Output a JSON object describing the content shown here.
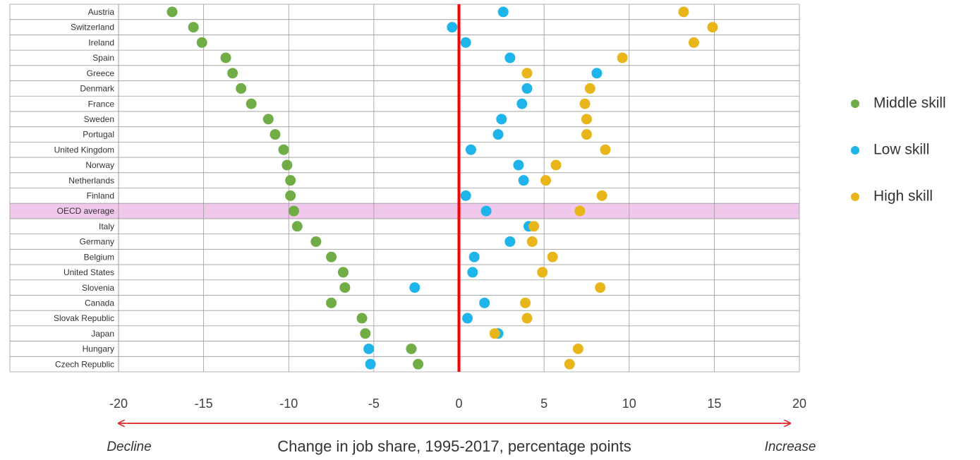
{
  "chart_data": {
    "type": "dot",
    "categories": [
      "Austria",
      "Switzerland",
      "Ireland",
      "Spain",
      "Greece",
      "Denmark",
      "France",
      "Sweden",
      "Portugal",
      "United Kingdom",
      "Norway",
      "Netherlands",
      "Finland",
      "OECD average",
      "Italy",
      "Germany",
      "Belgium",
      "United States",
      "Slovenia",
      "Canada",
      "Slovak Republic",
      "Japan",
      "Hungary",
      "Czech Republic"
    ],
    "series": [
      {
        "name": "Middle skill",
        "color": "#70ad47",
        "values": [
          -16.85,
          -15.6,
          -15.1,
          -13.7,
          -13.3,
          -12.8,
          -12.2,
          -11.2,
          -10.8,
          -10.3,
          -10.1,
          -9.9,
          -9.9,
          -9.7,
          -9.5,
          -8.4,
          -7.5,
          -6.8,
          -6.7,
          -7.5,
          -5.7,
          -5.5,
          -2.8,
          -2.4
        ]
      },
      {
        "name": "Low skill",
        "color": "#1fb4ea",
        "values": [
          2.6,
          -0.4,
          0.4,
          3.0,
          8.1,
          4.0,
          3.7,
          2.5,
          2.3,
          0.7,
          3.5,
          3.8,
          0.4,
          1.6,
          4.1,
          3.0,
          0.9,
          0.8,
          -2.6,
          1.5,
          0.5,
          2.3,
          -5.3,
          -5.2
        ]
      },
      {
        "name": "High skill",
        "color": "#e8b51a",
        "values": [
          13.2,
          14.9,
          13.8,
          9.6,
          4.0,
          7.7,
          7.4,
          7.5,
          7.5,
          8.6,
          5.7,
          5.1,
          8.4,
          7.1,
          4.4,
          4.3,
          5.5,
          4.9,
          8.3,
          3.9,
          4.0,
          2.1,
          7.0,
          6.5
        ]
      }
    ],
    "xlim": [
      -20,
      20
    ],
    "xticks": [
      -20,
      -15,
      -10,
      -5,
      0,
      5,
      10,
      15,
      20
    ],
    "grid": true,
    "xlabel": "Change in job share, 1995-2017, percentage points",
    "annotations": [
      "Decline",
      "Increase"
    ],
    "highlight_category": "OECD average",
    "highlight_color": "#f0c8ec",
    "reference_line": {
      "value": 0,
      "color": "#ff0000"
    },
    "legend": "right"
  }
}
